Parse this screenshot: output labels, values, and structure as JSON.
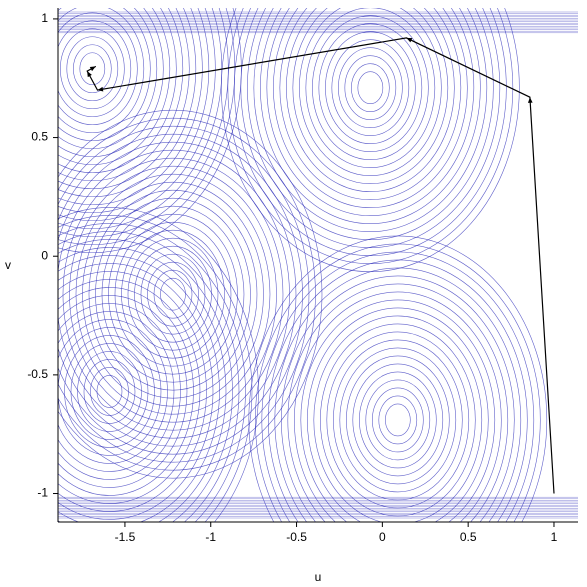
{
  "chart_data": {
    "type": "contour",
    "x_label": "u",
    "y_label": "v",
    "xlim": [
      -1.89,
      1.14
    ],
    "ylim": [
      -1.12,
      1.046
    ],
    "xticks": [
      -1.5,
      -1,
      -0.5,
      0,
      0.5,
      1
    ],
    "yticks": [
      -1,
      -0.5,
      0,
      0.5,
      1
    ],
    "contour_color": "#2a2ab8",
    "contour_centers": [
      {
        "x": -0.07,
        "y": 0.71
      },
      {
        "x": 0.09,
        "y": -0.69
      },
      {
        "x": -1.22,
        "y": -0.16
      },
      {
        "x": -1.59,
        "y": -0.57
      },
      {
        "x": -1.69,
        "y": 0.79
      }
    ],
    "series": [
      {
        "color": "#000000",
        "x": [
          1,
          0.86,
          0.14,
          -1.66,
          -1.72,
          -1.67
        ],
        "y": [
          -1,
          0.67,
          0.92,
          0.7,
          0.78,
          0.8
        ]
      }
    ]
  }
}
